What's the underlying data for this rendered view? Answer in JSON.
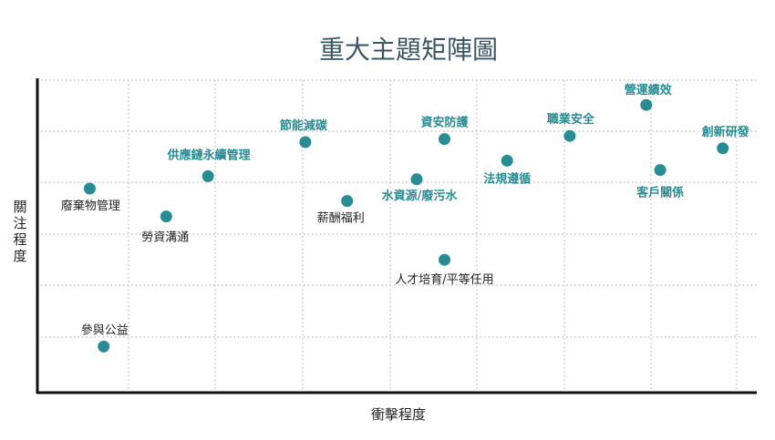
{
  "chart_data": {
    "type": "scatter",
    "title": "重大主題矩陣圖",
    "xlabel": "衝擊程度",
    "ylabel": "關注程度",
    "xlim": [
      0,
      10
    ],
    "ylim": [
      0,
      10
    ],
    "grid": true,
    "colors": {
      "point": "#2a8c93",
      "highlight_label": "#2a8c93",
      "normal_label": "#222222",
      "grid": "#c4c4c4",
      "axis": "#111111",
      "title": "#3d5663"
    },
    "points": [
      {
        "label": "營運績效",
        "x": 8.7,
        "y": 9.2,
        "highlight": true
      },
      {
        "label": "資安防護",
        "x": 5.8,
        "y": 8.1,
        "highlight": true
      },
      {
        "label": "職業安全",
        "x": 7.6,
        "y": 8.2,
        "highlight": true
      },
      {
        "label": "節能減碳",
        "x": 3.8,
        "y": 8.0,
        "highlight": true
      },
      {
        "label": "創新研發",
        "x": 9.8,
        "y": 7.8,
        "highlight": true
      },
      {
        "label": "法規遵循",
        "x": 6.7,
        "y": 7.4,
        "highlight": true
      },
      {
        "label": "客戶關係",
        "x": 8.9,
        "y": 7.1,
        "highlight": true
      },
      {
        "label": "供應鏈永續管理",
        "x": 2.4,
        "y": 6.9,
        "highlight": true
      },
      {
        "label": "水資源/廢污水",
        "x": 5.4,
        "y": 6.8,
        "highlight": true
      },
      {
        "label": "廢棄物管理",
        "x": 0.7,
        "y": 6.5,
        "highlight": false
      },
      {
        "label": "薪酬福利",
        "x": 4.4,
        "y": 6.1,
        "highlight": false
      },
      {
        "label": "勞資溝通",
        "x": 1.8,
        "y": 5.6,
        "highlight": false
      },
      {
        "label": "人才培育/平等任用",
        "x": 5.8,
        "y": 4.2,
        "highlight": false
      },
      {
        "label": "參與公益",
        "x": 0.9,
        "y": 1.4,
        "highlight": false
      }
    ]
  }
}
